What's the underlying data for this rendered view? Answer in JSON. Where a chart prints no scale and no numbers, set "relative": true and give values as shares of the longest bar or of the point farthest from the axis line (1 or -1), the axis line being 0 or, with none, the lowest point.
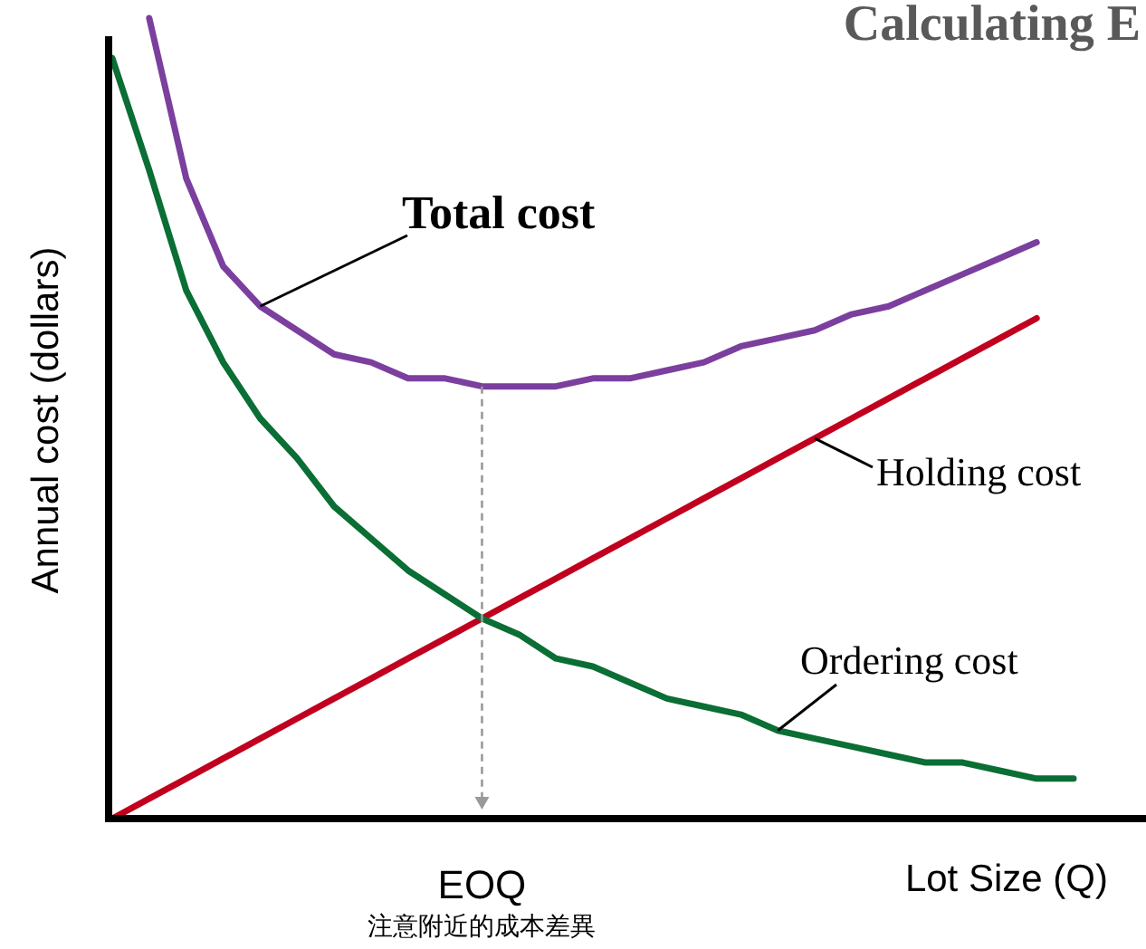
{
  "chart_data": {
    "type": "line",
    "title": "Calculating E",
    "xlabel": "Lot Size (Q)",
    "ylabel": "Annual cost (dollars)",
    "relative": true,
    "categories": [
      null,
      null,
      null,
      null,
      null,
      null,
      null,
      null,
      null,
      null,
      null,
      null,
      null,
      null,
      null,
      null,
      null,
      null,
      null,
      null,
      null,
      null,
      null,
      null,
      null,
      null,
      null
    ],
    "series": [
      {
        "name": "Total cost",
        "color": "#7b3f9e",
        "values": [
          null,
          1.0,
          0.8,
          0.69,
          0.64,
          0.61,
          0.58,
          0.57,
          0.55,
          0.55,
          0.54,
          0.54,
          0.54,
          0.55,
          0.55,
          0.56,
          0.57,
          0.59,
          0.6,
          0.61,
          0.63,
          0.64,
          0.66,
          0.68,
          0.7,
          0.72,
          null
        ]
      },
      {
        "name": "Holding cost",
        "color": "#c0001e",
        "values": [
          0.0,
          0.025,
          0.05,
          0.075,
          0.1,
          0.125,
          0.15,
          0.175,
          0.2,
          0.225,
          0.25,
          0.275,
          0.3,
          0.325,
          0.35,
          0.375,
          0.4,
          0.425,
          0.45,
          0.475,
          0.5,
          0.525,
          0.55,
          0.575,
          0.6,
          0.625,
          null
        ]
      },
      {
        "name": "Ordering cost",
        "color": "#0a6e35",
        "values": [
          0.95,
          0.81,
          0.66,
          0.57,
          0.5,
          0.45,
          0.39,
          0.35,
          0.31,
          0.28,
          0.25,
          0.23,
          0.2,
          0.19,
          0.17,
          0.15,
          0.14,
          0.13,
          0.11,
          0.1,
          0.09,
          0.08,
          0.07,
          0.07,
          0.06,
          0.05,
          0.05
        ]
      }
    ],
    "annotations": [
      "EOQ",
      "注意附近的成本差異"
    ]
  }
}
